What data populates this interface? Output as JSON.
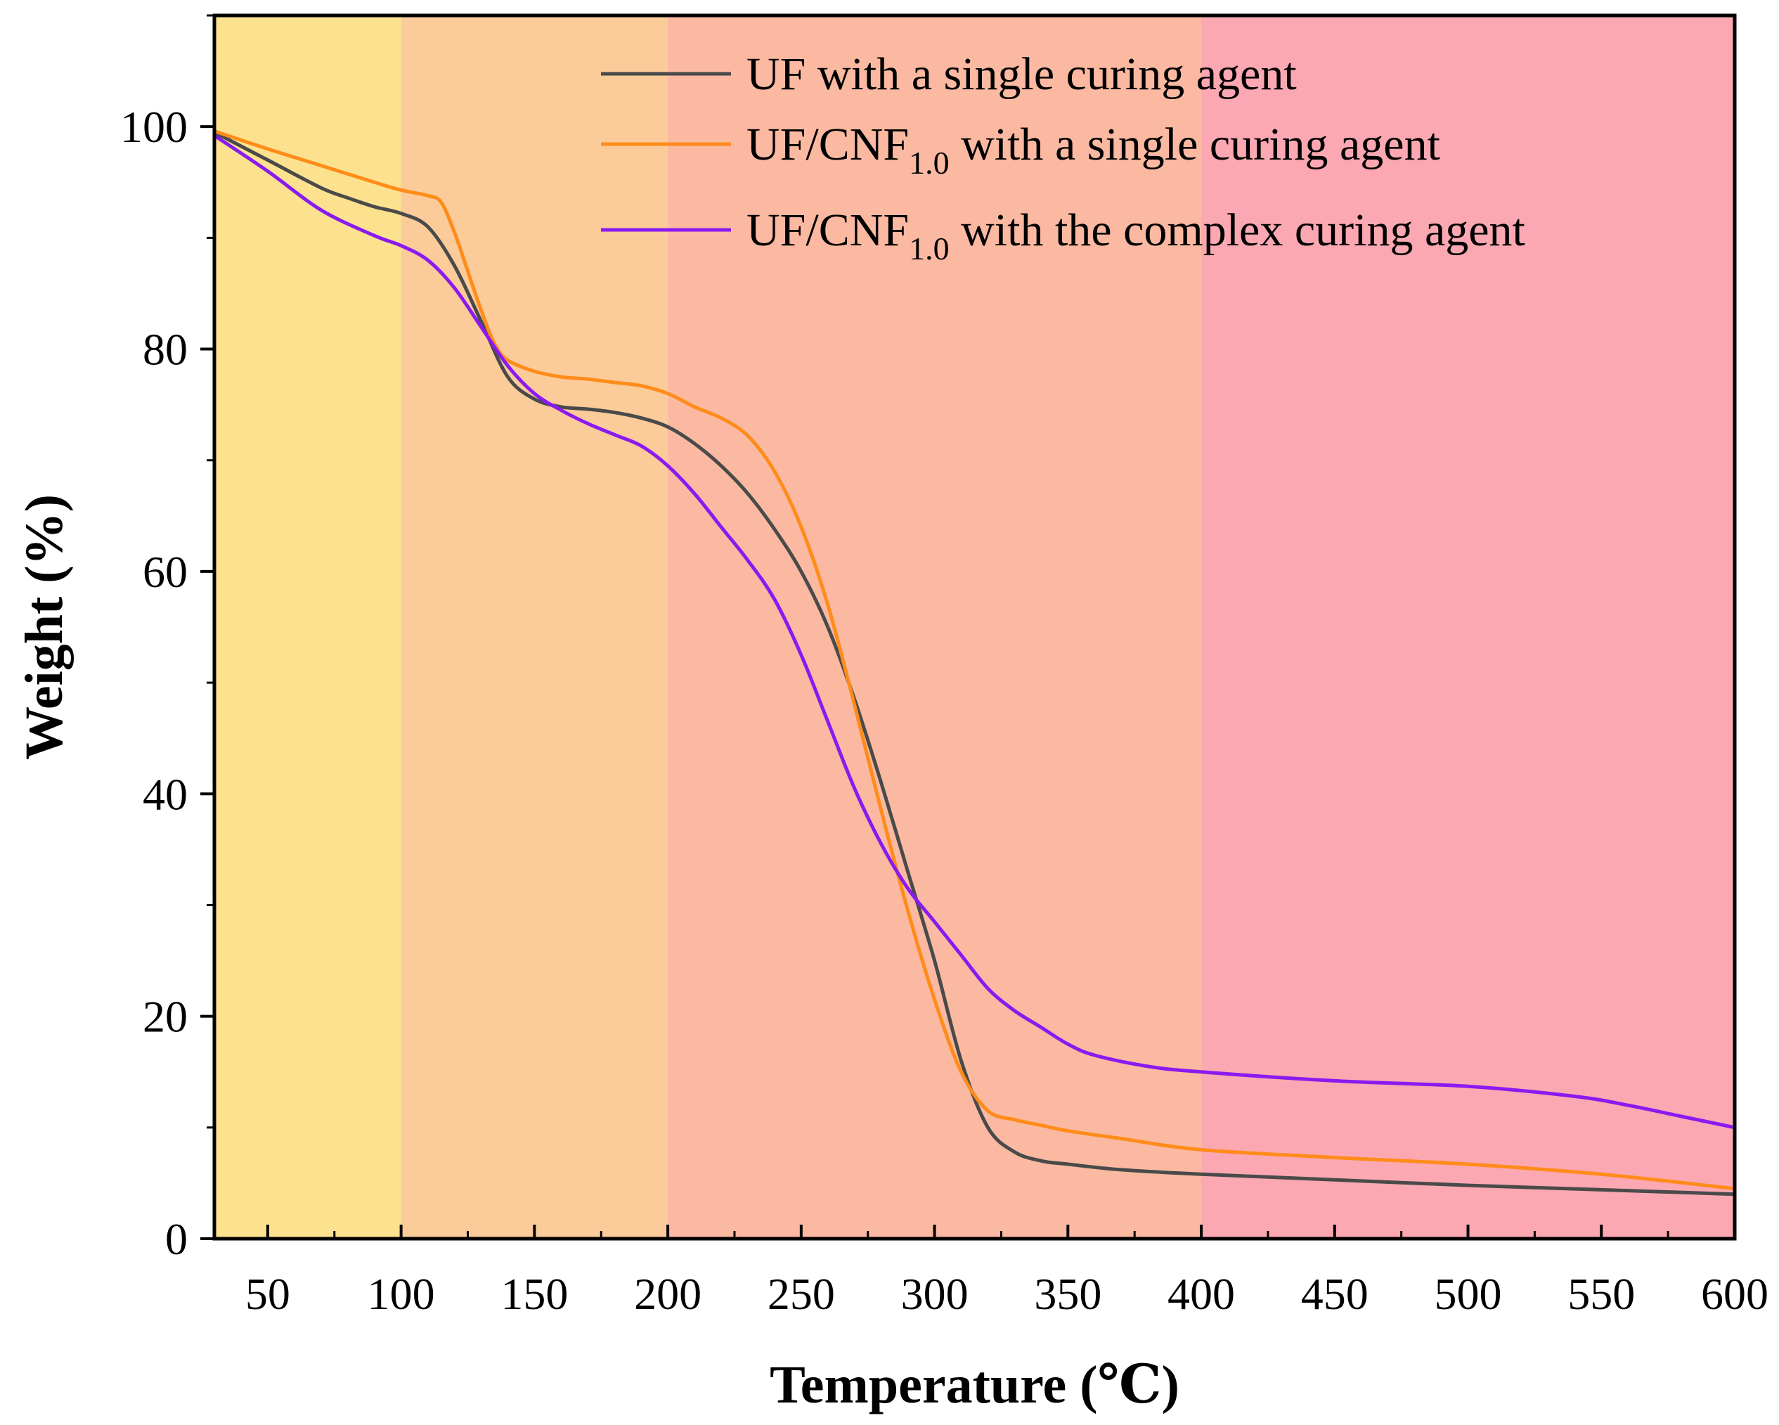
{
  "chart_data": {
    "type": "line",
    "title": "",
    "xlabel": "Temperature (℃)",
    "ylabel": "Weight (%)",
    "xlim": [
      30,
      600
    ],
    "ylim": [
      0,
      110
    ],
    "x_ticks": [
      50,
      100,
      150,
      200,
      250,
      300,
      350,
      400,
      450,
      500,
      550,
      600
    ],
    "y_ticks": [
      0,
      20,
      40,
      60,
      80,
      100
    ],
    "grid": false,
    "legend_position": "top-right",
    "background_bands": [
      {
        "from": 30,
        "to": 100,
        "color": "#FCE28E"
      },
      {
        "from": 100,
        "to": 200,
        "color": "#FBCB9A"
      },
      {
        "from": 200,
        "to": 400,
        "color": "#FBB9A2"
      },
      {
        "from": 400,
        "to": 600,
        "color": "#FBA8B2"
      }
    ],
    "series": [
      {
        "name": "UF with a single curing agent",
        "legend": {
          "prefix": "UF with a single curing agent",
          "sub": "",
          "suffix": ""
        },
        "color": "#4a4a4a",
        "points": [
          [
            30,
            99.5
          ],
          [
            50,
            97
          ],
          [
            70,
            94.5
          ],
          [
            80,
            93.6
          ],
          [
            90,
            92.8
          ],
          [
            100,
            92.2
          ],
          [
            110,
            91
          ],
          [
            120,
            87.5
          ],
          [
            130,
            82.5
          ],
          [
            140,
            77.5
          ],
          [
            150,
            75.5
          ],
          [
            160,
            74.8
          ],
          [
            170,
            74.6
          ],
          [
            180,
            74.3
          ],
          [
            190,
            73.8
          ],
          [
            200,
            73
          ],
          [
            210,
            71.5
          ],
          [
            220,
            69.5
          ],
          [
            230,
            67
          ],
          [
            240,
            63.8
          ],
          [
            250,
            60
          ],
          [
            260,
            55
          ],
          [
            270,
            48.5
          ],
          [
            280,
            41
          ],
          [
            290,
            33
          ],
          [
            300,
            25
          ],
          [
            310,
            16
          ],
          [
            320,
            10
          ],
          [
            330,
            7.8
          ],
          [
            340,
            7
          ],
          [
            350,
            6.7
          ],
          [
            370,
            6.2
          ],
          [
            400,
            5.8
          ],
          [
            450,
            5.3
          ],
          [
            500,
            4.8
          ],
          [
            550,
            4.4
          ],
          [
            600,
            4.0
          ]
        ]
      },
      {
        "name": "UF/CNF1.0 with a single curing agent",
        "legend": {
          "prefix": "UF/CNF",
          "sub": "1.0",
          "suffix": " with a single curing agent"
        },
        "color": "#FF8C1A",
        "points": [
          [
            30,
            99.6
          ],
          [
            50,
            98
          ],
          [
            70,
            96.5
          ],
          [
            90,
            95
          ],
          [
            100,
            94.3
          ],
          [
            110,
            93.8
          ],
          [
            115,
            93.2
          ],
          [
            120,
            90.5
          ],
          [
            125,
            87
          ],
          [
            130,
            83.5
          ],
          [
            135,
            80.5
          ],
          [
            140,
            79
          ],
          [
            150,
            78
          ],
          [
            160,
            77.5
          ],
          [
            170,
            77.3
          ],
          [
            180,
            77
          ],
          [
            190,
            76.7
          ],
          [
            200,
            76
          ],
          [
            210,
            74.8
          ],
          [
            220,
            73.8
          ],
          [
            230,
            72.2
          ],
          [
            240,
            69
          ],
          [
            250,
            64
          ],
          [
            260,
            57
          ],
          [
            270,
            48
          ],
          [
            280,
            38.5
          ],
          [
            290,
            29.5
          ],
          [
            300,
            21.5
          ],
          [
            310,
            15
          ],
          [
            320,
            11.5
          ],
          [
            330,
            10.7
          ],
          [
            340,
            10.2
          ],
          [
            350,
            9.7
          ],
          [
            370,
            9
          ],
          [
            400,
            8
          ],
          [
            450,
            7.3
          ],
          [
            500,
            6.7
          ],
          [
            550,
            5.8
          ],
          [
            600,
            4.5
          ]
        ]
      },
      {
        "name": "UF/CNF1.0 with the complex curing agent",
        "legend": {
          "prefix": "UF/CNF",
          "sub": "1.0",
          "suffix": " with the complex curing agent"
        },
        "color": "#8A1AF0",
        "points": [
          [
            30,
            99.2
          ],
          [
            50,
            96
          ],
          [
            70,
            92.5
          ],
          [
            90,
            90.2
          ],
          [
            100,
            89.3
          ],
          [
            110,
            88
          ],
          [
            120,
            85.5
          ],
          [
            130,
            82
          ],
          [
            140,
            78.5
          ],
          [
            150,
            76
          ],
          [
            160,
            74.5
          ],
          [
            170,
            73.3
          ],
          [
            180,
            72.3
          ],
          [
            190,
            71.3
          ],
          [
            200,
            69.5
          ],
          [
            210,
            67
          ],
          [
            220,
            64
          ],
          [
            230,
            61
          ],
          [
            240,
            57.5
          ],
          [
            250,
            52.5
          ],
          [
            260,
            46.5
          ],
          [
            270,
            40.5
          ],
          [
            280,
            35.5
          ],
          [
            290,
            31.5
          ],
          [
            300,
            28.5
          ],
          [
            310,
            25.5
          ],
          [
            320,
            22.5
          ],
          [
            330,
            20.5
          ],
          [
            340,
            19
          ],
          [
            350,
            17.5
          ],
          [
            360,
            16.5
          ],
          [
            380,
            15.5
          ],
          [
            400,
            15
          ],
          [
            450,
            14.2
          ],
          [
            500,
            13.7
          ],
          [
            540,
            12.8
          ],
          [
            560,
            12
          ],
          [
            580,
            11
          ],
          [
            600,
            10
          ]
        ]
      }
    ]
  }
}
